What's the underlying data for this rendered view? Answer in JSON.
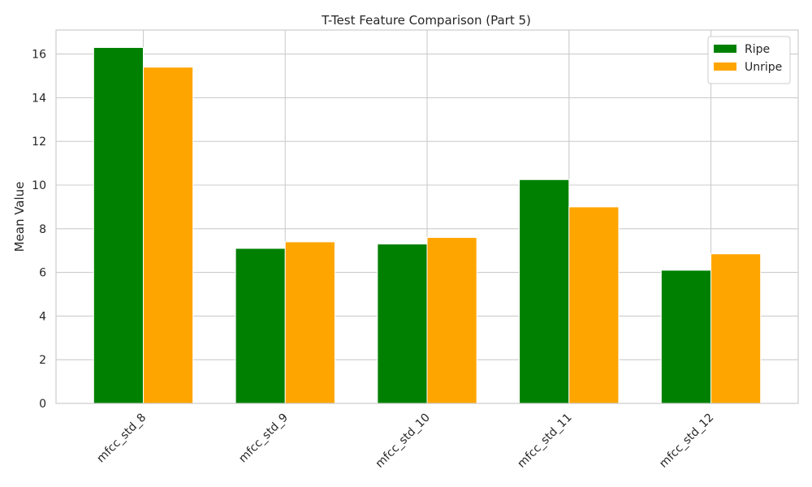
{
  "chart_data": {
    "type": "bar",
    "title": "T-Test Feature Comparison (Part 5)",
    "xlabel": "",
    "ylabel": "Mean Value",
    "categories": [
      "mfcc_std_8",
      "mfcc_std_9",
      "mfcc_std_10",
      "mfcc_std_11",
      "mfcc_std_12"
    ],
    "series": [
      {
        "name": "Ripe",
        "color": "#008000",
        "values": [
          16.3,
          7.1,
          7.3,
          10.25,
          6.1
        ]
      },
      {
        "name": "Unripe",
        "color": "#FFA500",
        "values": [
          15.4,
          7.4,
          7.6,
          9.0,
          6.85
        ]
      }
    ],
    "ylim": [
      0,
      17.1
    ],
    "yticks": [
      "0",
      "2",
      "4",
      "6",
      "8",
      "10",
      "12",
      "14",
      "16"
    ],
    "grid": true,
    "legend_position": "top-right",
    "xtick_rotation": 45
  }
}
